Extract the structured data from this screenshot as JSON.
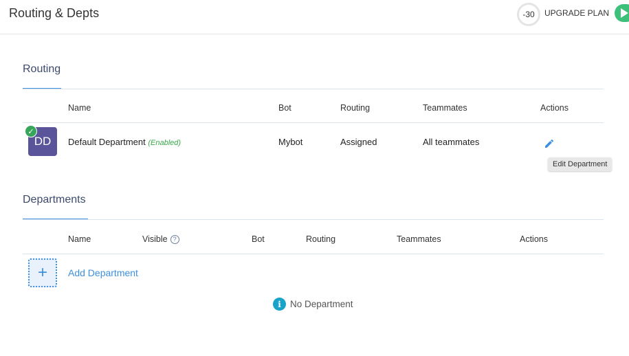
{
  "header": {
    "title": "Routing & Depts",
    "credits": "-30",
    "upgrade_label": "UPGRADE PLAN"
  },
  "routing": {
    "section_title": "Routing",
    "columns": [
      "Name",
      "Bot",
      "Routing",
      "Teammates",
      "Actions"
    ],
    "row": {
      "initials": "DD",
      "name": "Default Department",
      "status": "(Enabled)",
      "bot": "Mybot",
      "routing": "Assigned",
      "teammates": "All teammates",
      "action_tooltip": "Edit Department"
    }
  },
  "departments": {
    "section_title": "Departments",
    "columns": [
      "Name",
      "Visible",
      "Bot",
      "Routing",
      "Teammates",
      "Actions"
    ],
    "visible_help": "?",
    "add_label": "Add Department",
    "empty_message": "No Department"
  },
  "colors": {
    "accent": "#3d8fe0",
    "avatar": "#5a559b",
    "enabled": "#3aa84a"
  }
}
